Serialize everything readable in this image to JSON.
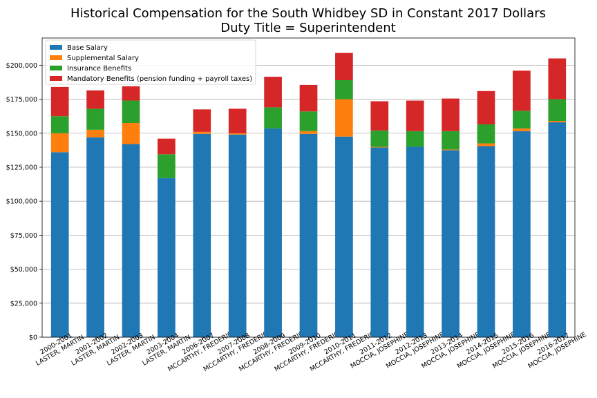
{
  "chart_data": {
    "type": "bar",
    "stacked": true,
    "title": "Historical Compensation for the South Whidbey SD in Constant 2017 Dollars",
    "subtitle": "Duty Title = Superintendent",
    "xlabel": "",
    "ylabel": "",
    "ylim": [
      0,
      220000
    ],
    "yticks": [
      0,
      25000,
      50000,
      75000,
      100000,
      125000,
      150000,
      175000,
      200000
    ],
    "ytick_labels": [
      "$0",
      "$25,000",
      "$50,000",
      "$75,000",
      "$100,000",
      "$125,000",
      "$150,000",
      "$175,000",
      "$200,000"
    ],
    "grid": "y",
    "legend_position": "top-left",
    "categories": [
      [
        "2000-2001",
        "LASTER, MARTIN"
      ],
      [
        "2001-2002",
        "LASTER, MARTIN"
      ],
      [
        "2002-2003",
        "LASTER, MARTIN"
      ],
      [
        "2003-2004",
        "LASTER, MARTIN"
      ],
      [
        "2006-2007",
        "MCCARTHY, FREDERICK"
      ],
      [
        "2007-2008",
        "MCCARTHY, FREDERICK"
      ],
      [
        "2008-2009",
        "MCCARTHY, FREDERICK"
      ],
      [
        "2009-2010",
        "MCCARTHY, FREDERICK"
      ],
      [
        "2010-2011",
        "MCCARTHY, FREDERICK"
      ],
      [
        "2011-2012",
        "MOCCIA, JOSEPHINE"
      ],
      [
        "2012-2013",
        "MOCCIA, JOSEPHINE"
      ],
      [
        "2013-2014",
        "MOCCIA, JOSEPHINE"
      ],
      [
        "2014-2015",
        "MOCCIA, JOSEPHINE"
      ],
      [
        "2015-2016",
        "MOCCIA, JOSEPHINE"
      ],
      [
        "2016-2017",
        "MOCCIA, JOSEPHINE"
      ]
    ],
    "series": [
      {
        "name": "Base Salary",
        "color": "#1f77b4",
        "values": [
          136000,
          147000,
          142000,
          117000,
          149500,
          149000,
          153500,
          149500,
          147500,
          139500,
          140000,
          137500,
          140500,
          151500,
          158000
        ]
      },
      {
        "name": "Supplemental Salary",
        "color": "#ff7f0e",
        "values": [
          14000,
          5500,
          15500,
          0,
          1500,
          1000,
          0,
          2000,
          27500,
          500,
          0,
          500,
          2000,
          2000,
          1000
        ]
      },
      {
        "name": "Insurance Benefits",
        "color": "#2ca02c",
        "values": [
          12500,
          15500,
          16500,
          17500,
          0,
          0,
          15500,
          14500,
          14000,
          12000,
          11500,
          13500,
          14000,
          13000,
          16000
        ]
      },
      {
        "name": "Mandatory Benefits (pension funding + payroll taxes)",
        "color": "#d62728",
        "values": [
          21500,
          13500,
          10500,
          11500,
          16500,
          18000,
          22500,
          19500,
          20000,
          21500,
          22500,
          24000,
          24500,
          29500,
          30000
        ]
      }
    ]
  }
}
